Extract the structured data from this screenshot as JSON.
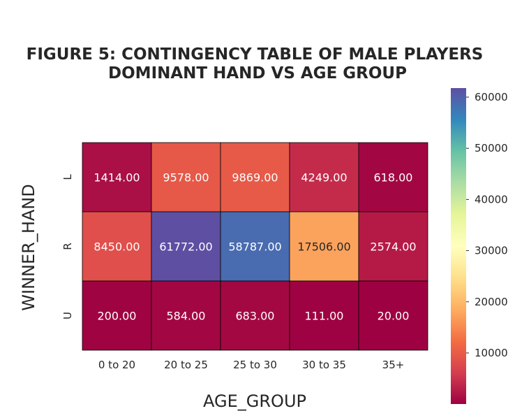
{
  "chart_data": {
    "type": "heatmap",
    "title_lines": [
      "FIGURE 5: CONTINGENCY TABLE OF MALE PLAYERS",
      "DOMINANT HAND VS AGE GROUP"
    ],
    "xlabel": "AGE_GROUP",
    "ylabel": "WINNER_HAND",
    "x_categories": [
      "0 to 20",
      "20 to 25",
      "25 to 30",
      "30 to 35",
      "35+"
    ],
    "y_categories": [
      "L",
      "R",
      "U"
    ],
    "values": [
      [
        1414,
        9578,
        9869,
        4249,
        618
      ],
      [
        8450,
        61772,
        58787,
        17506,
        2574
      ],
      [
        200,
        584,
        683,
        111,
        20
      ]
    ],
    "annotations": [
      [
        "1414.00",
        "9578.00",
        "9869.00",
        "4249.00",
        "618.00"
      ],
      [
        "8450.00",
        "61772.00",
        "58787.00",
        "17506.00",
        "2574.00"
      ],
      [
        "200.00",
        "584.00",
        "683.00",
        "111.00",
        "20.00"
      ]
    ],
    "colormap": "Spectral",
    "color_range": [
      20,
      61772
    ],
    "colorbar_ticks": [
      "10000",
      "20000",
      "30000",
      "40000",
      "50000",
      "60000"
    ],
    "cell_border_color": "#000000",
    "annotation_colors": {
      "on_dark": "#ffffff",
      "on_light": "#262626"
    }
  }
}
